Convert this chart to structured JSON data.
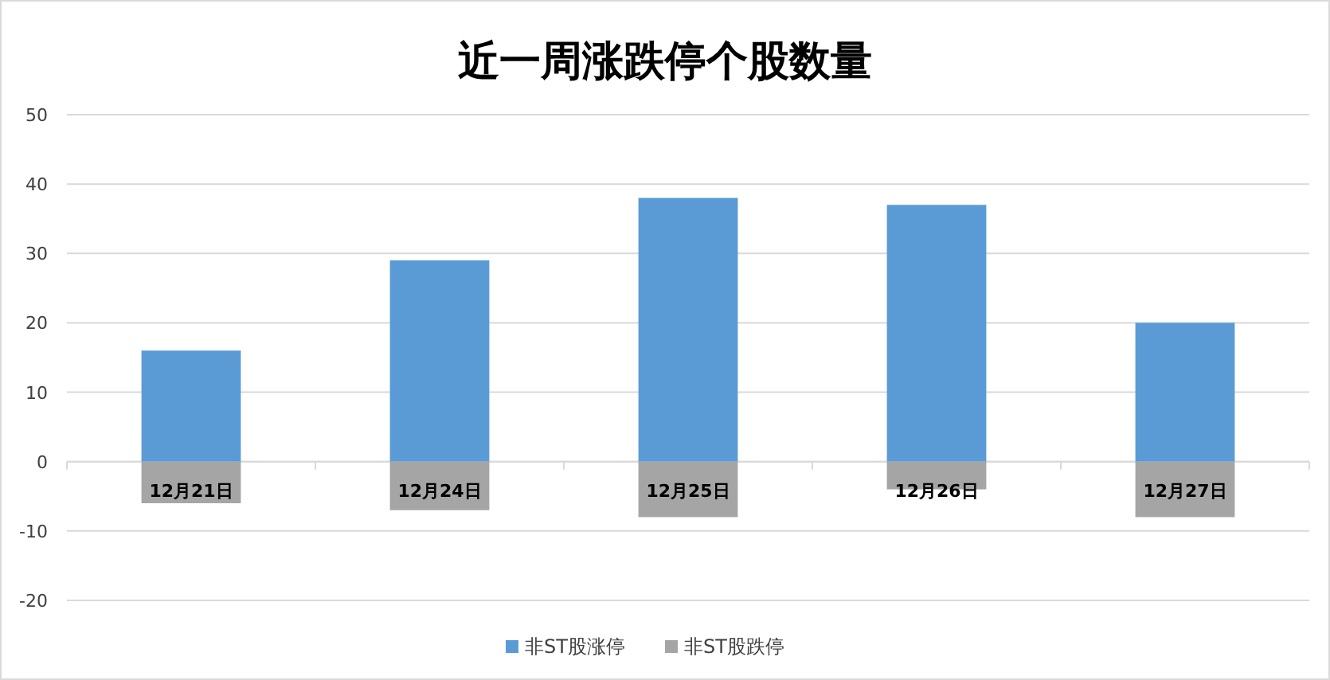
{
  "chart_data": {
    "type": "bar",
    "title": "近一周涨跌停个股数量",
    "categories": [
      "12月21日",
      "12月24日",
      "12月25日",
      "12月26日",
      "12月27日"
    ],
    "series": [
      {
        "name": "非ST股涨停",
        "color": "#5b9bd5",
        "values": [
          16,
          29,
          38,
          37,
          20
        ]
      },
      {
        "name": "非ST股跌停",
        "color": "#a5a5a5",
        "values": [
          -6,
          -7,
          -8,
          -4,
          -8
        ]
      }
    ],
    "stacked": true,
    "ylim": [
      -20,
      50
    ],
    "yticks": [
      -20,
      -10,
      0,
      10,
      20,
      30,
      40,
      50
    ],
    "grid": "y",
    "legend": "bottom"
  }
}
